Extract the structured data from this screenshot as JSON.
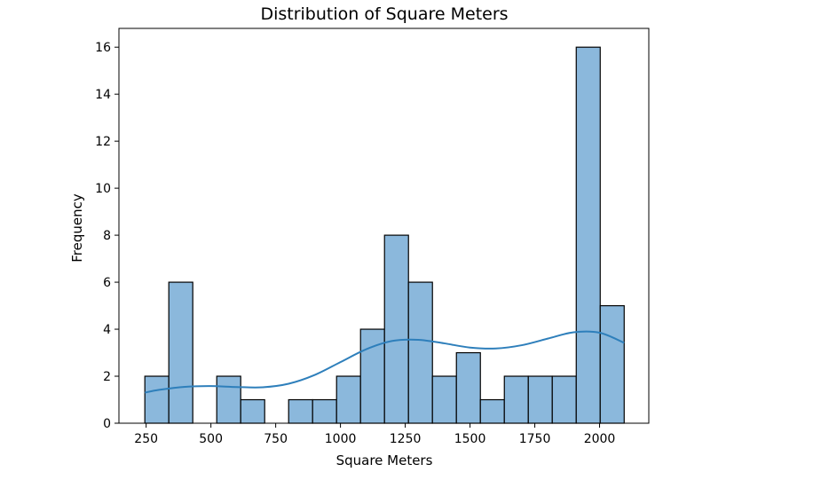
{
  "chart_data": {
    "type": "bar",
    "title": "Distribution of Square Meters",
    "xlabel": "Square Meters",
    "ylabel": "Frequency",
    "xlim": [
      145,
      2190
    ],
    "ylim": [
      0,
      16.8
    ],
    "xticks": [
      250,
      500,
      750,
      1000,
      1250,
      1500,
      1750,
      2000
    ],
    "yticks": [
      0,
      2,
      4,
      6,
      8,
      10,
      12,
      14,
      16
    ],
    "bin_edges": [
      245,
      337.5,
      430,
      522.5,
      615,
      707.5,
      800,
      892.5,
      985,
      1077.5,
      1170,
      1262.5,
      1355,
      1447.5,
      1540,
      1632.5,
      1725,
      1817.5,
      1910,
      2002.5,
      2095
    ],
    "counts": [
      2,
      6,
      0,
      2,
      1,
      0,
      1,
      1,
      2,
      4,
      8,
      6,
      2,
      3,
      1,
      2,
      2,
      2,
      16,
      5
    ],
    "kde": {
      "x": [
        245,
        300,
        400,
        500,
        600,
        700,
        800,
        900,
        1000,
        1100,
        1200,
        1300,
        1400,
        1500,
        1600,
        1700,
        1800,
        1900,
        2000,
        2095
      ],
      "y": [
        1.3,
        1.42,
        1.55,
        1.58,
        1.54,
        1.53,
        1.68,
        2.05,
        2.6,
        3.15,
        3.5,
        3.55,
        3.4,
        3.22,
        3.18,
        3.32,
        3.6,
        3.87,
        3.85,
        3.42
      ]
    },
    "bar_color": "#8bb8dc",
    "bar_edge_color": "#000000",
    "kde_color": "#2e7fbb",
    "grid": false
  }
}
